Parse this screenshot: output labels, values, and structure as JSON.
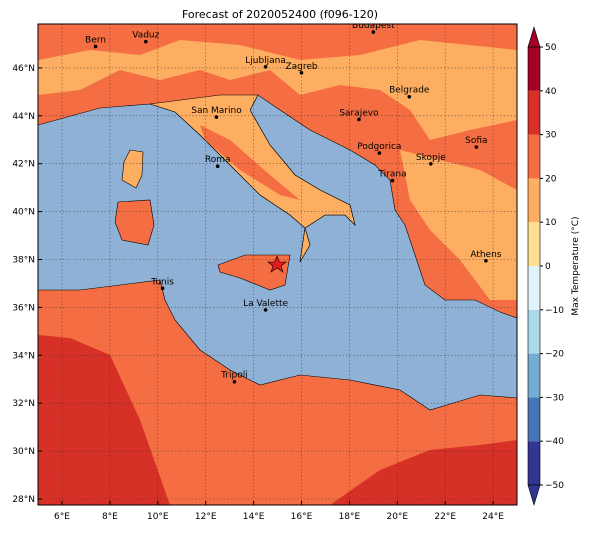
{
  "title": "Forecast of 2020052400 (f096-120)",
  "x_ticks": [
    "6°E",
    "8°E",
    "10°E",
    "12°E",
    "14°E",
    "16°E",
    "18°E",
    "20°E",
    "22°E",
    "24°E"
  ],
  "y_ticks": [
    "28°N",
    "30°N",
    "32°N",
    "34°N",
    "36°N",
    "38°N",
    "40°N",
    "42°N",
    "44°N",
    "46°N"
  ],
  "cities": [
    "Bern",
    "Vaduz",
    "Budapest",
    "Ljubljana",
    "Zagreb",
    "Belgrade",
    "Sarajevo",
    "San Marino",
    "Sofia",
    "Podgorica",
    "Skopje",
    "Roma",
    "Tirana",
    "Athens",
    "Tunis",
    "La Valette",
    "Tripoli"
  ],
  "colorbar": {
    "label": "Max Temperature (°C)",
    "ticks": [
      {
        "value": -50,
        "label": "−50"
      },
      {
        "value": -40,
        "label": "−40"
      },
      {
        "value": -30,
        "label": "−30"
      },
      {
        "value": -20,
        "label": "−20"
      },
      {
        "value": -10,
        "label": "−10"
      },
      0,
      10,
      20,
      30,
      40,
      50
    ],
    "colors": [
      "#313695",
      "#4575b4",
      "#74add1",
      "#abd9e9",
      "#e0f3f8",
      "#fee090",
      "#fdae61",
      "#f46d43",
      "#d73027",
      "#a50026"
    ]
  }
}
